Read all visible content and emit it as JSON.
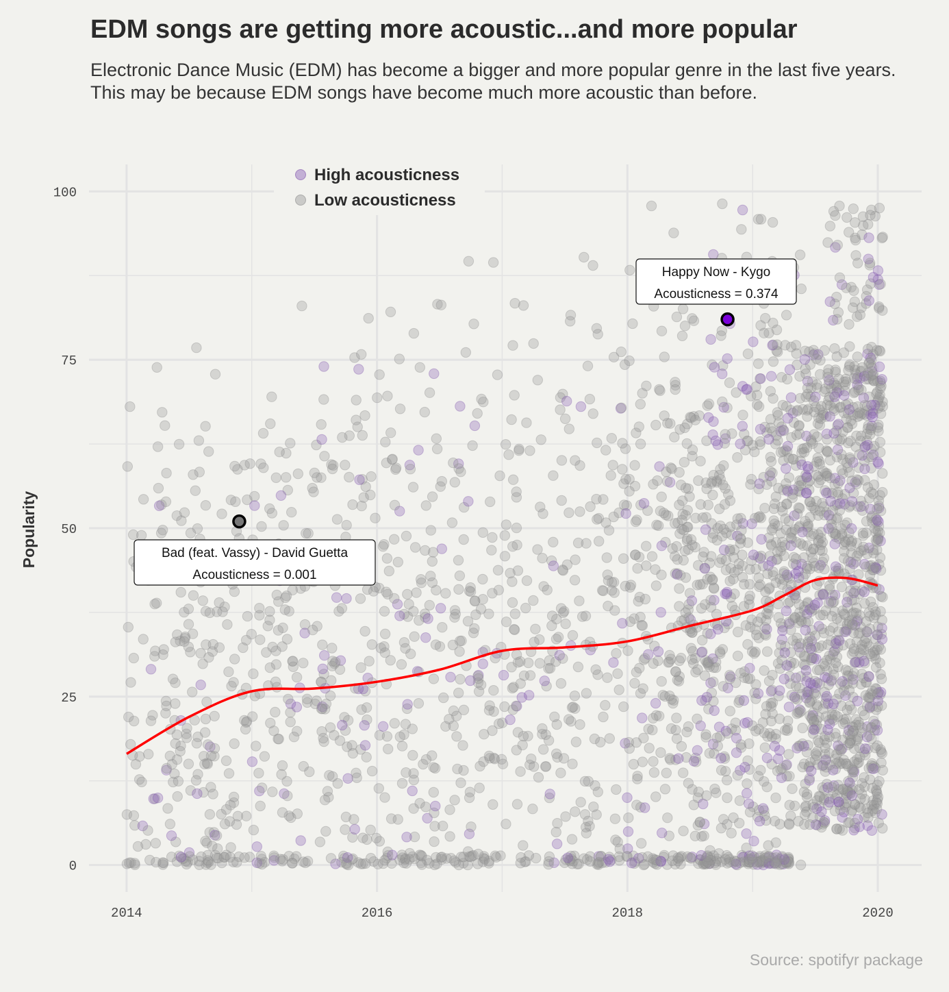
{
  "header": {
    "title": "EDM songs are getting more acoustic...and more popular",
    "subtitle": "Electronic Dance Music (EDM) has become a bigger and more popular genre in the last five years. This may be because EDM songs have become much more acoustic than before."
  },
  "source": "Source: spotifyr package",
  "chart_data": {
    "type": "scatter",
    "ylabel": "Popularity",
    "xlabel": "",
    "xlim": [
      2013.7,
      2020.35
    ],
    "ylim": [
      -4,
      104
    ],
    "x_ticks": [
      "2014",
      "2016",
      "2018",
      "2020"
    ],
    "y_ticks": [
      "0",
      "25",
      "50",
      "75",
      "100"
    ],
    "grid": true,
    "legend_position": "top-left",
    "colors": {
      "high": "#8a5fb5",
      "low": "#999999",
      "trend": "#ff0000",
      "background": "#f2f2ee",
      "grid": "#e3e3e3",
      "highlight_fill": "#7a00d9"
    },
    "series": [
      {
        "name": "High acousticness",
        "color": "#8a5fb5"
      },
      {
        "name": "Low acousticness",
        "color": "#999999"
      }
    ],
    "trend": {
      "x": [
        2014.0,
        2014.5,
        2015.0,
        2015.5,
        2016.0,
        2016.5,
        2017.0,
        2017.5,
        2018.0,
        2018.5,
        2019.0,
        2019.25,
        2019.5,
        2019.75,
        2020.0
      ],
      "y": [
        16.5,
        22.0,
        25.8,
        26.2,
        27.2,
        29.0,
        31.8,
        32.3,
        33.2,
        35.5,
        37.8,
        40.0,
        42.3,
        42.6,
        41.5
      ]
    },
    "annotations": [
      {
        "line1": "Happy Now - Kygo",
        "line2": "Acousticness = 0.374",
        "x": 2018.8,
        "y": 81
      },
      {
        "line1": "Bad (feat. Vassy) - David Guetta",
        "line2": "Acousticness = 0.001",
        "x": 2014.9,
        "y": 51
      }
    ]
  }
}
